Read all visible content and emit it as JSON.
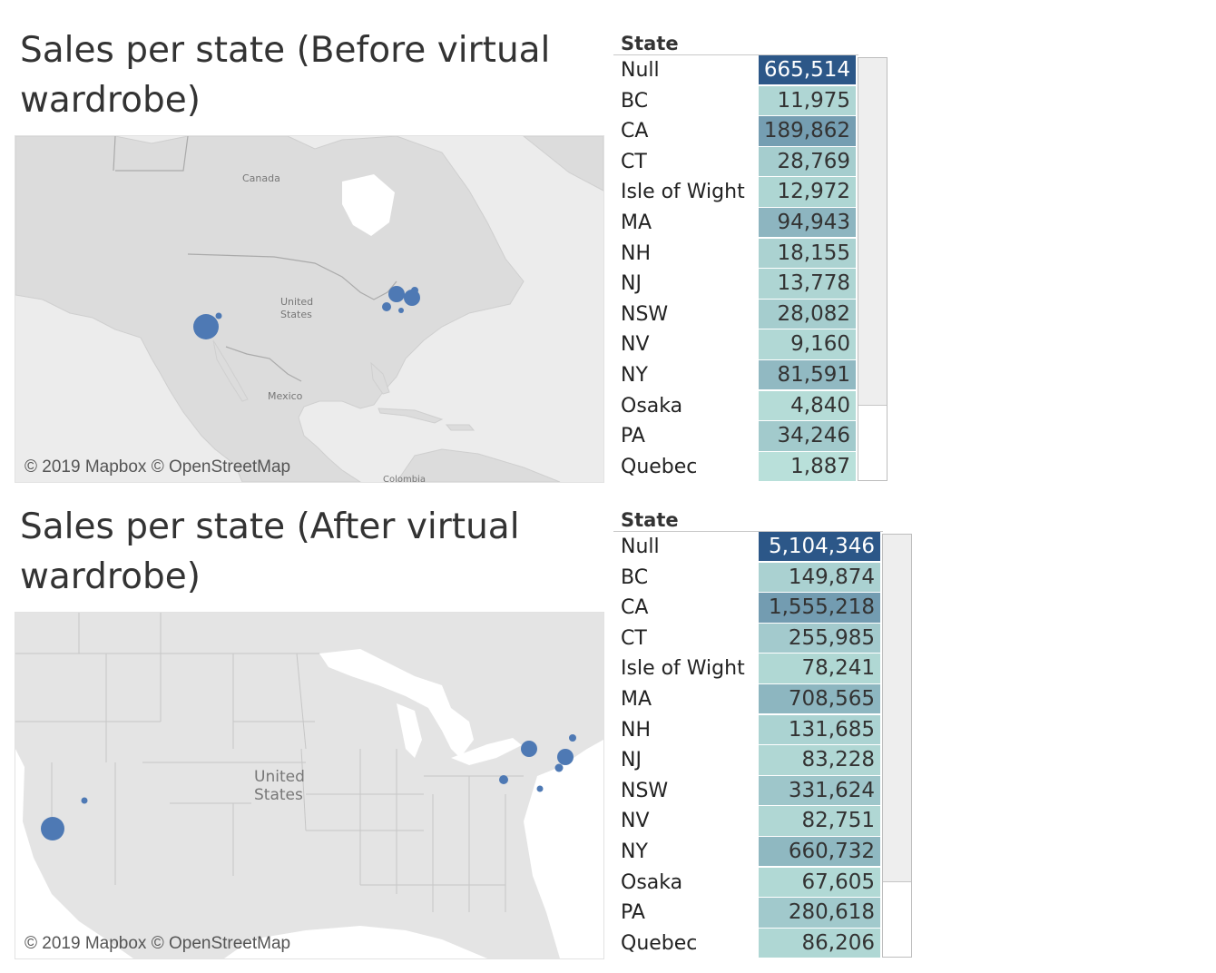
{
  "panels": [
    {
      "title": "Sales per state (Before virtual wardrobe)",
      "map": {
        "attribution": "© 2019 Mapbox © OpenStreetMap",
        "labels": [
          "Canada",
          "United States",
          "Mexico",
          "Colombia"
        ]
      },
      "table": {
        "header": "State",
        "rows": [
          {
            "state": "Null",
            "value": "665,514"
          },
          {
            "state": "BC",
            "value": "11,975"
          },
          {
            "state": "CA",
            "value": "189,862"
          },
          {
            "state": "CT",
            "value": "28,769"
          },
          {
            "state": "Isle of Wight",
            "value": "12,972"
          },
          {
            "state": "MA",
            "value": "94,943"
          },
          {
            "state": "NH",
            "value": "18,155"
          },
          {
            "state": "NJ",
            "value": "13,778"
          },
          {
            "state": "NSW",
            "value": "28,082"
          },
          {
            "state": "NV",
            "value": "9,160"
          },
          {
            "state": "NY",
            "value": "81,591"
          },
          {
            "state": "Osaka",
            "value": "4,840"
          },
          {
            "state": "PA",
            "value": "34,246"
          },
          {
            "state": "Quebec",
            "value": "1,887"
          }
        ]
      }
    },
    {
      "title": "Sales per state (After virtual wardrobe)",
      "map": {
        "attribution": "© 2019 Mapbox © OpenStreetMap",
        "labels": [
          "United States"
        ]
      },
      "table": {
        "header": "State",
        "rows": [
          {
            "state": "Null",
            "value": "5,104,346"
          },
          {
            "state": "BC",
            "value": "149,874"
          },
          {
            "state": "CA",
            "value": "1,555,218"
          },
          {
            "state": "CT",
            "value": "255,985"
          },
          {
            "state": "Isle of Wight",
            "value": "78,241"
          },
          {
            "state": "MA",
            "value": "708,565"
          },
          {
            "state": "NH",
            "value": "131,685"
          },
          {
            "state": "NJ",
            "value": "83,228"
          },
          {
            "state": "NSW",
            "value": "331,624"
          },
          {
            "state": "NV",
            "value": "82,751"
          },
          {
            "state": "NY",
            "value": "660,732"
          },
          {
            "state": "Osaka",
            "value": "67,605"
          },
          {
            "state": "PA",
            "value": "280,618"
          },
          {
            "state": "Quebec",
            "value": "86,206"
          }
        ]
      }
    }
  ],
  "colors": {
    "marker": "#4e79b4",
    "land": "#dcdcdc",
    "water": "#ffffff",
    "heat_low": "#bfe6dd",
    "heat_high": "#2c5788"
  }
}
